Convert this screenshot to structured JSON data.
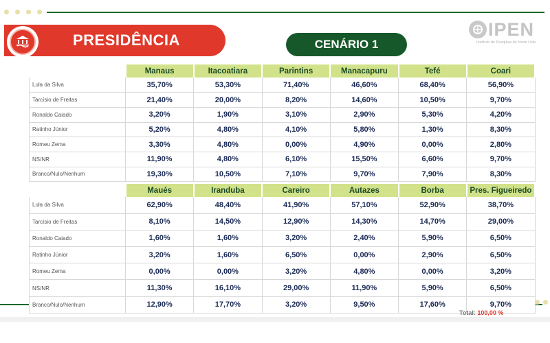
{
  "header": {
    "title": "PRESIDÊNCIA",
    "scenario": "CENÁRIO 1"
  },
  "logo": {
    "name": "IPEN",
    "subtitle": "Instituto de Pesquisa do Norte Ltda"
  },
  "candidates": [
    "Lula da Silva",
    "Tarcísio de Freitas",
    "Ronaldo Caiado",
    "Ratinho Júnior",
    "Romeu Zema",
    "NS/NR",
    "Branco/Nulo/Nenhum"
  ],
  "table1": {
    "columns": [
      "Manaus",
      "Itacoatiara",
      "Parintins",
      "Manacapuru",
      "Tefé",
      "Coari"
    ],
    "rows": [
      [
        "35,70%",
        "53,30%",
        "71,40%",
        "46,60%",
        "68,40%",
        "56,90%"
      ],
      [
        "21,40%",
        "20,00%",
        "8,20%",
        "14,60%",
        "10,50%",
        "9,70%"
      ],
      [
        "3,20%",
        "1,90%",
        "3,10%",
        "2,90%",
        "5,30%",
        "4,20%"
      ],
      [
        "5,20%",
        "4,80%",
        "4,10%",
        "5,80%",
        "1,30%",
        "8,30%"
      ],
      [
        "3,30%",
        "4,80%",
        "0,00%",
        "4,90%",
        "0,00%",
        "2,80%"
      ],
      [
        "11,90%",
        "4,80%",
        "6,10%",
        "15,50%",
        "6,60%",
        "9,70%"
      ],
      [
        "19,30%",
        "10,50%",
        "7,10%",
        "9,70%",
        "7,90%",
        "8,30%"
      ]
    ]
  },
  "table2": {
    "columns": [
      "Maués",
      "Iranduba",
      "Careiro",
      "Autazes",
      "Borba",
      "Pres. Figueiredo"
    ],
    "rows": [
      [
        "62,90%",
        "48,40%",
        "41,90%",
        "57,10%",
        "52,90%",
        "38,70%"
      ],
      [
        "8,10%",
        "14,50%",
        "12,90%",
        "14,30%",
        "14,70%",
        "29,00%"
      ],
      [
        "1,60%",
        "1,60%",
        "3,20%",
        "2,40%",
        "5,90%",
        "6,50%"
      ],
      [
        "3,20%",
        "1,60%",
        "6,50%",
        "0,00%",
        "2,90%",
        "6,50%"
      ],
      [
        "0,00%",
        "0,00%",
        "3,20%",
        "4,80%",
        "0,00%",
        "3,20%"
      ],
      [
        "11,30%",
        "16,10%",
        "29,00%",
        "11,90%",
        "5,90%",
        "6,50%"
      ],
      [
        "12,90%",
        "17,70%",
        "3,20%",
        "9,50%",
        "17,60%",
        "9,70%"
      ]
    ]
  },
  "footer": {
    "total_label": "Total:",
    "total_value": "100,00 %"
  },
  "colors": {
    "header_red": "#e0392c",
    "scenario_green": "#17582a",
    "table_header_bg": "#d2e28a",
    "value_text": "#1a2a55"
  },
  "icons": [
    "government-building-icon",
    "handshake-icon",
    "ipen-logo-icon"
  ]
}
